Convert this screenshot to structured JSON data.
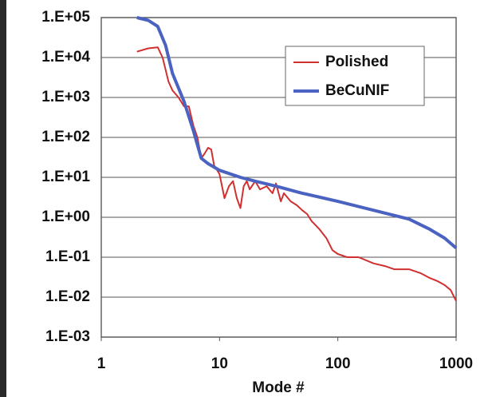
{
  "chart_data": {
    "type": "line",
    "xlabel": "Mode #",
    "xscale": "log",
    "yscale": "log",
    "grid": "y",
    "legend": "upper right",
    "xlim": [
      1,
      1000
    ],
    "xticks": [
      1,
      10,
      100,
      1000
    ],
    "ylim": [
      0.001,
      100000
    ],
    "yticks": [
      {
        "value": 0.001,
        "label": "1.E-03"
      },
      {
        "value": 0.01,
        "label": "1.E-02"
      },
      {
        "value": 0.1,
        "label": "1.E-01"
      },
      {
        "value": 1,
        "label": "1.E+00"
      },
      {
        "value": 10,
        "label": "1.E+01"
      },
      {
        "value": 100,
        "label": "1.E+02"
      },
      {
        "value": 1000,
        "label": "1.E+03"
      },
      {
        "value": 10000,
        "label": "1.E+04"
      },
      {
        "value": 100000,
        "label": "1.E+05"
      }
    ],
    "series": [
      {
        "name": "Polished",
        "color": "#d03030",
        "x": [
          2,
          2.5,
          3,
          3.3,
          3.7,
          4,
          4.5,
          5,
          5.5,
          6,
          6.5,
          7,
          7.5,
          8,
          8.5,
          9,
          10,
          11,
          12,
          13,
          14,
          15,
          16,
          17,
          18,
          20,
          22,
          25,
          28,
          30,
          33,
          35,
          40,
          45,
          50,
          55,
          60,
          70,
          80,
          90,
          100,
          120,
          150,
          200,
          250,
          300,
          400,
          500,
          600,
          700,
          800,
          900,
          1000
        ],
        "values": [
          14000,
          17000,
          18000,
          10000,
          2500,
          1500,
          1000,
          600,
          600,
          200,
          100,
          30,
          40,
          55,
          50,
          20,
          12,
          3,
          6,
          8,
          3,
          1.7,
          6,
          8,
          5,
          8,
          5,
          6,
          4,
          7,
          2.5,
          4,
          2.5,
          2,
          1.5,
          1.2,
          0.8,
          0.5,
          0.3,
          0.15,
          0.12,
          0.1,
          0.1,
          0.07,
          0.06,
          0.05,
          0.05,
          0.04,
          0.03,
          0.025,
          0.02,
          0.015,
          0.008
        ]
      },
      {
        "name": "BeCuNIF",
        "color": "#4a62c0",
        "x": [
          2,
          2.5,
          3,
          3.5,
          4,
          5,
          6,
          7,
          8,
          10,
          15,
          20,
          30,
          50,
          100,
          200,
          400,
          600,
          800,
          1000
        ],
        "values": [
          100000,
          85000,
          60000,
          20000,
          4000,
          800,
          150,
          30,
          22,
          15,
          10,
          8,
          6,
          4,
          2.5,
          1.5,
          0.9,
          0.5,
          0.3,
          0.17
        ]
      }
    ]
  }
}
